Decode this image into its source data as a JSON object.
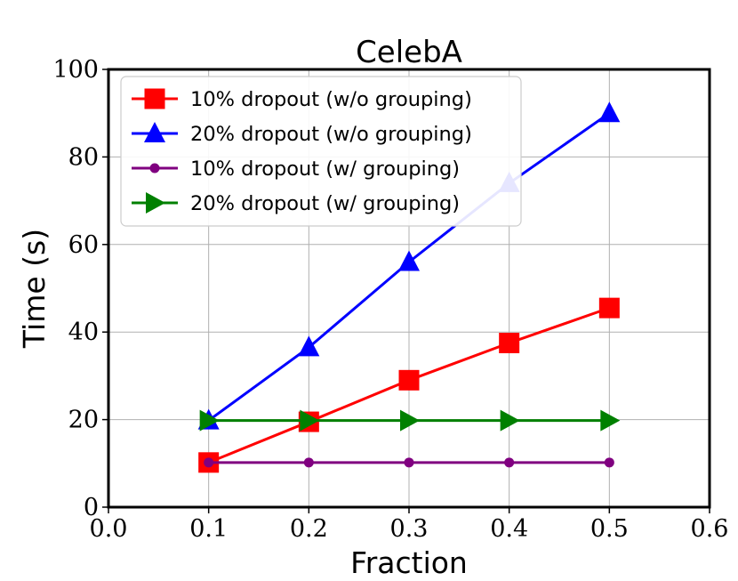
{
  "chart_data": {
    "type": "line",
    "title": "CelebA",
    "xlabel": "Fraction",
    "ylabel": "Time (s)",
    "xlim": [
      0.0,
      0.6
    ],
    "ylim": [
      0,
      100
    ],
    "grid": true,
    "legend_position": "top-left",
    "xticks": [
      "0.0",
      "0.1",
      "0.2",
      "0.3",
      "0.4",
      "0.5",
      "0.6"
    ],
    "yticks": [
      "0",
      "20",
      "40",
      "60",
      "80",
      "100"
    ],
    "x": [
      0.1,
      0.2,
      0.3,
      0.4,
      0.5
    ],
    "series": [
      {
        "name": "10% dropout (w/o grouping)",
        "color": "#ff0000",
        "marker": "square",
        "values": [
          10.2,
          19.5,
          29.0,
          37.5,
          45.5
        ]
      },
      {
        "name": "20% dropout (w/o grouping)",
        "color": "#0000ff",
        "marker": "triangle-up",
        "values": [
          19.8,
          36.5,
          56.0,
          74.0,
          90.0
        ]
      },
      {
        "name": "10% dropout (w/ grouping)",
        "color": "#800080",
        "marker": "circle",
        "values": [
          10.2,
          10.2,
          10.2,
          10.2,
          10.2
        ]
      },
      {
        "name": "20% dropout (w/ grouping)",
        "color": "#008000",
        "marker": "triangle-right",
        "values": [
          19.8,
          19.8,
          19.8,
          19.8,
          19.8
        ]
      }
    ]
  }
}
